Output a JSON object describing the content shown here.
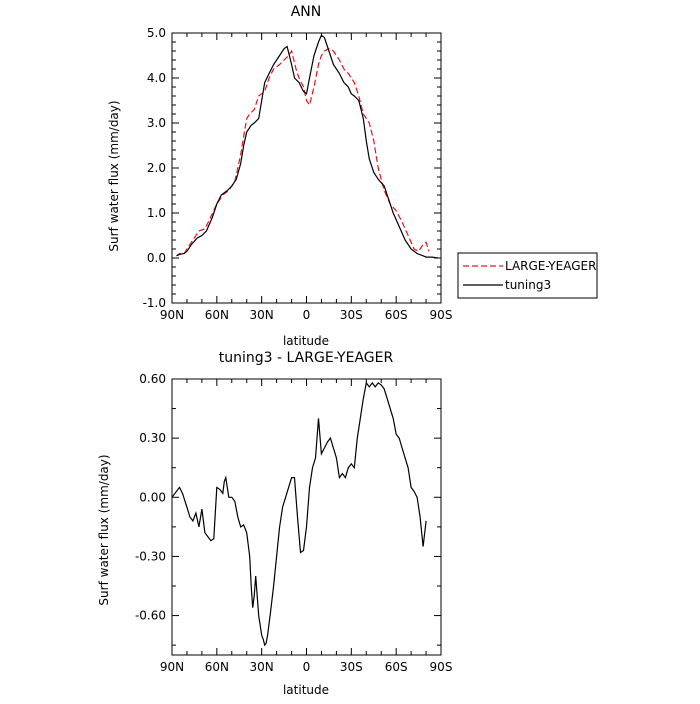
{
  "chart_data": [
    {
      "type": "line",
      "title": "ANN",
      "xlabel": "latitude",
      "ylabel": "Surf water flux (mm/day)",
      "xlim": [
        90,
        -90
      ],
      "ylim": [
        -1.0,
        5.0
      ],
      "x_tick_labels": [
        "90N",
        "60N",
        "30N",
        "0",
        "30S",
        "60S",
        "90S"
      ],
      "y_tick_labels": [
        "-1.0",
        "0.0",
        "1.0",
        "2.0",
        "3.0",
        "4.0",
        "5.0"
      ],
      "legend_placement": "right",
      "series": [
        {
          "name": "LARGE-YEAGER",
          "color": "#e8141a",
          "dash": "dashed",
          "x": [
            87,
            85,
            82,
            80,
            76,
            72,
            68,
            65,
            60,
            56,
            52,
            48,
            44,
            40,
            38,
            35,
            32,
            28,
            25,
            22,
            18,
            15,
            12,
            10,
            7,
            5,
            2,
            0,
            -2,
            -5,
            -8,
            -10,
            -12,
            -15,
            -18,
            -22,
            -25,
            -28,
            -32,
            -35,
            -38,
            -42,
            -45,
            -48,
            -52,
            -56,
            -60,
            -64,
            -68,
            -72,
            -75,
            -76,
            -78,
            -80,
            -82
          ],
          "y": [
            0.05,
            0.1,
            0.08,
            0.2,
            0.4,
            0.6,
            0.65,
            0.85,
            1.2,
            1.4,
            1.5,
            1.7,
            2.3,
            3.1,
            3.2,
            3.3,
            3.6,
            3.7,
            4.0,
            4.2,
            4.3,
            4.4,
            4.5,
            4.6,
            4.2,
            4.0,
            3.8,
            3.5,
            3.4,
            3.8,
            4.3,
            4.5,
            4.6,
            4.65,
            4.6,
            4.4,
            4.2,
            4.1,
            3.9,
            3.6,
            3.2,
            3.0,
            2.6,
            2.0,
            1.5,
            1.2,
            1.05,
            0.8,
            0.5,
            0.2,
            0.15,
            0.2,
            0.3,
            0.35,
            0.15
          ]
        },
        {
          "name": "tuning3",
          "color": "#000000",
          "dash": "solid",
          "x": [
            87,
            85,
            82,
            80,
            77,
            73,
            70,
            67,
            63,
            60,
            57,
            53,
            50,
            47,
            44,
            42,
            40,
            37,
            35,
            32,
            30,
            28,
            25,
            22,
            18,
            15,
            13,
            10,
            8,
            5,
            2,
            0,
            -2,
            -5,
            -8,
            -10,
            -12,
            -15,
            -18,
            -22,
            -25,
            -28,
            -30,
            -32,
            -35,
            -38,
            -40,
            -42,
            -45,
            -48,
            -52,
            -55,
            -58,
            -62,
            -66,
            -70,
            -74,
            -78,
            -80,
            -84,
            -88
          ],
          "y": [
            0.05,
            0.08,
            0.1,
            0.15,
            0.3,
            0.45,
            0.5,
            0.6,
            0.9,
            1.2,
            1.4,
            1.5,
            1.6,
            1.75,
            2.1,
            2.5,
            2.8,
            2.95,
            3.0,
            3.1,
            3.5,
            3.9,
            4.1,
            4.3,
            4.5,
            4.65,
            4.7,
            4.3,
            4.0,
            3.9,
            3.7,
            3.65,
            4.0,
            4.5,
            4.8,
            4.95,
            4.9,
            4.6,
            4.3,
            4.1,
            3.9,
            3.8,
            3.65,
            3.6,
            3.5,
            3.1,
            2.6,
            2.2,
            1.9,
            1.75,
            1.6,
            1.3,
            1.0,
            0.7,
            0.4,
            0.2,
            0.1,
            0.05,
            0.02,
            0.02,
            0.0
          ]
        }
      ]
    },
    {
      "type": "line",
      "title": "tuning3 - LARGE-YEAGER",
      "xlabel": "latitude",
      "ylabel": "Surf water flux (mm/day)",
      "xlim": [
        90,
        -90
      ],
      "ylim": [
        -0.8,
        0.6
      ],
      "x_tick_labels": [
        "90N",
        "60N",
        "30N",
        "0",
        "30S",
        "60S",
        "90S"
      ],
      "y_tick_labels": [
        "-0.60",
        "-0.30",
        "0.00",
        "0.30",
        "0.60"
      ],
      "series": [
        {
          "color": "#000000",
          "x": [
            90,
            88,
            85,
            83,
            80,
            78,
            76,
            74,
            72,
            70,
            68,
            66,
            64,
            62,
            60,
            58,
            56,
            55,
            54,
            52,
            50,
            48,
            46,
            44,
            42,
            40,
            38,
            37,
            36,
            35,
            34,
            33,
            32,
            31,
            30,
            29,
            28,
            27,
            26,
            24,
            22,
            20,
            18,
            16,
            14,
            12,
            10,
            8,
            6,
            4,
            2,
            0,
            -2,
            -3,
            -4,
            -6,
            -8,
            -10,
            -12,
            -14,
            -16,
            -18,
            -20,
            -22,
            -24,
            -26,
            -28,
            -30,
            -32,
            -34,
            -36,
            -38,
            -40,
            -42,
            -44,
            -46,
            -48,
            -50,
            -52,
            -54,
            -56,
            -58,
            -60,
            -62,
            -64,
            -66,
            -68,
            -70,
            -72,
            -74,
            -76,
            -78,
            -80
          ],
          "y": [
            0.0,
            0.02,
            0.05,
            0.02,
            -0.05,
            -0.1,
            -0.12,
            -0.08,
            -0.15,
            -0.06,
            -0.18,
            -0.2,
            -0.22,
            -0.21,
            0.05,
            0.04,
            0.02,
            0.08,
            0.1,
            0.0,
            0.0,
            -0.02,
            -0.1,
            -0.15,
            -0.14,
            -0.18,
            -0.3,
            -0.45,
            -0.56,
            -0.5,
            -0.4,
            -0.5,
            -0.6,
            -0.65,
            -0.7,
            -0.72,
            -0.75,
            -0.74,
            -0.7,
            -0.58,
            -0.45,
            -0.3,
            -0.15,
            -0.05,
            0.0,
            0.05,
            0.1,
            0.1,
            -0.1,
            -0.28,
            -0.27,
            -0.15,
            0.05,
            0.1,
            0.15,
            0.2,
            0.4,
            0.22,
            0.25,
            0.28,
            0.3,
            0.25,
            0.2,
            0.1,
            0.12,
            0.1,
            0.15,
            0.17,
            0.15,
            0.3,
            0.4,
            0.5,
            0.58,
            0.56,
            0.58,
            0.56,
            0.58,
            0.57,
            0.55,
            0.5,
            0.45,
            0.4,
            0.32,
            0.3,
            0.25,
            0.2,
            0.15,
            0.05,
            0.03,
            0.0,
            -0.1,
            -0.25,
            -0.12
          ]
        }
      ]
    }
  ]
}
